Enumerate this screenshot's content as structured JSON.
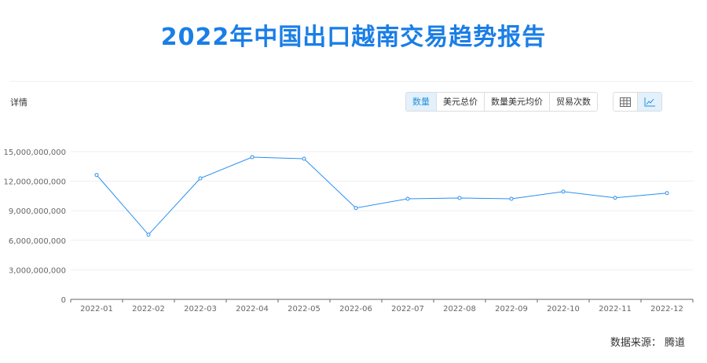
{
  "title": "2022年中国出口越南交易趋势报告",
  "detail_label": "详情",
  "metric_tabs": [
    {
      "label": "数量",
      "active": true
    },
    {
      "label": "美元总价",
      "active": false
    },
    {
      "label": "数量美元均价",
      "active": false
    },
    {
      "label": "贸易次数",
      "active": false
    }
  ],
  "view_toggle": [
    {
      "icon": "table-icon",
      "active": false
    },
    {
      "icon": "line-chart-icon",
      "active": true
    }
  ],
  "source": "数据来源：  腾道",
  "colors": {
    "title": "#1a7ee6",
    "line": "#2b8ff0",
    "active_tab_bg": "#e2f1fc"
  },
  "chart_data": {
    "type": "line",
    "categories": [
      "2022-01",
      "2022-02",
      "2022-03",
      "2022-04",
      "2022-05",
      "2022-06",
      "2022-07",
      "2022-08",
      "2022-09",
      "2022-10",
      "2022-11",
      "2022-12"
    ],
    "values": [
      12630000000,
      6570000000,
      12290000000,
      14440000000,
      14280000000,
      9280000000,
      10210000000,
      10290000000,
      10210000000,
      10940000000,
      10310000000,
      10790000000
    ],
    "yticks": [
      0,
      3000000000,
      6000000000,
      9000000000,
      12000000000,
      15000000000
    ],
    "ytick_labels": [
      "0",
      "3,000,000,000",
      "6,000,000,000",
      "9,000,000,000",
      "12,000,000,000",
      "15,000,000,000"
    ],
    "ylim": [
      0,
      15000000000
    ],
    "grid": true
  }
}
